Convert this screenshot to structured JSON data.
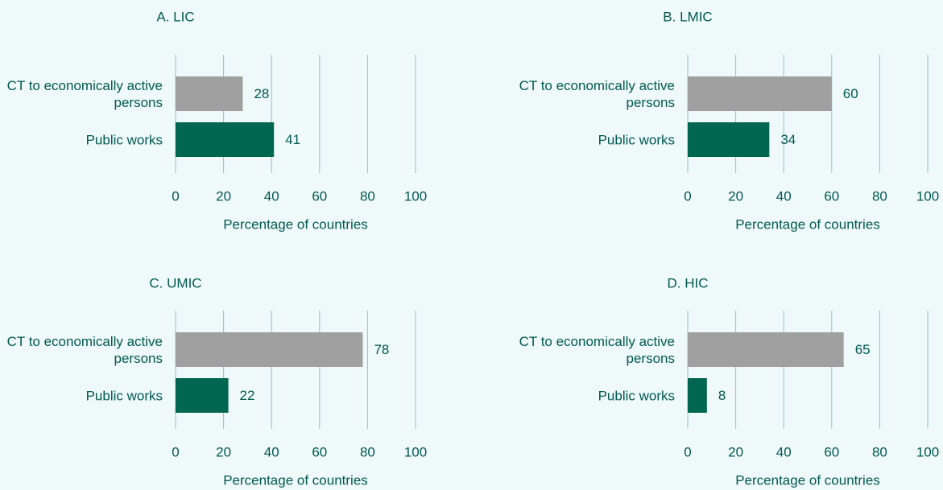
{
  "chart_data": [
    {
      "type": "hbar",
      "title": "A. LIC",
      "categories": [
        "CT to economically active persons",
        "Public works"
      ],
      "values": [
        28,
        41
      ],
      "colors": [
        "#a0a0a0",
        "#00664f"
      ],
      "xlabel": "Percentage of countries",
      "xlim": [
        0,
        100
      ],
      "xticks": [
        0,
        20,
        40,
        60,
        80,
        100
      ],
      "grid": true
    },
    {
      "type": "hbar",
      "title": "B. LMIC",
      "categories": [
        "CT to economically active persons",
        "Public works"
      ],
      "values": [
        60,
        34
      ],
      "colors": [
        "#a0a0a0",
        "#00664f"
      ],
      "xlabel": "Percentage of countries",
      "xlim": [
        0,
        100
      ],
      "xticks": [
        0,
        20,
        40,
        60,
        80,
        100
      ],
      "grid": true
    },
    {
      "type": "hbar",
      "title": "C. UMIC",
      "categories": [
        "CT to economically active persons",
        "Public works"
      ],
      "values": [
        78,
        22
      ],
      "colors": [
        "#a0a0a0",
        "#00664f"
      ],
      "xlabel": "Percentage of countries",
      "xlim": [
        0,
        100
      ],
      "xticks": [
        0,
        20,
        40,
        60,
        80,
        100
      ],
      "grid": true
    },
    {
      "type": "hbar",
      "title": "D. HIC",
      "categories": [
        "CT to economically active persons",
        "Public works"
      ],
      "values": [
        65,
        8
      ],
      "colors": [
        "#a0a0a0",
        "#00664f"
      ],
      "xlabel": "Percentage of countries",
      "xlim": [
        0,
        100
      ],
      "xticks": [
        0,
        20,
        40,
        60,
        80,
        100
      ],
      "grid": true
    }
  ]
}
